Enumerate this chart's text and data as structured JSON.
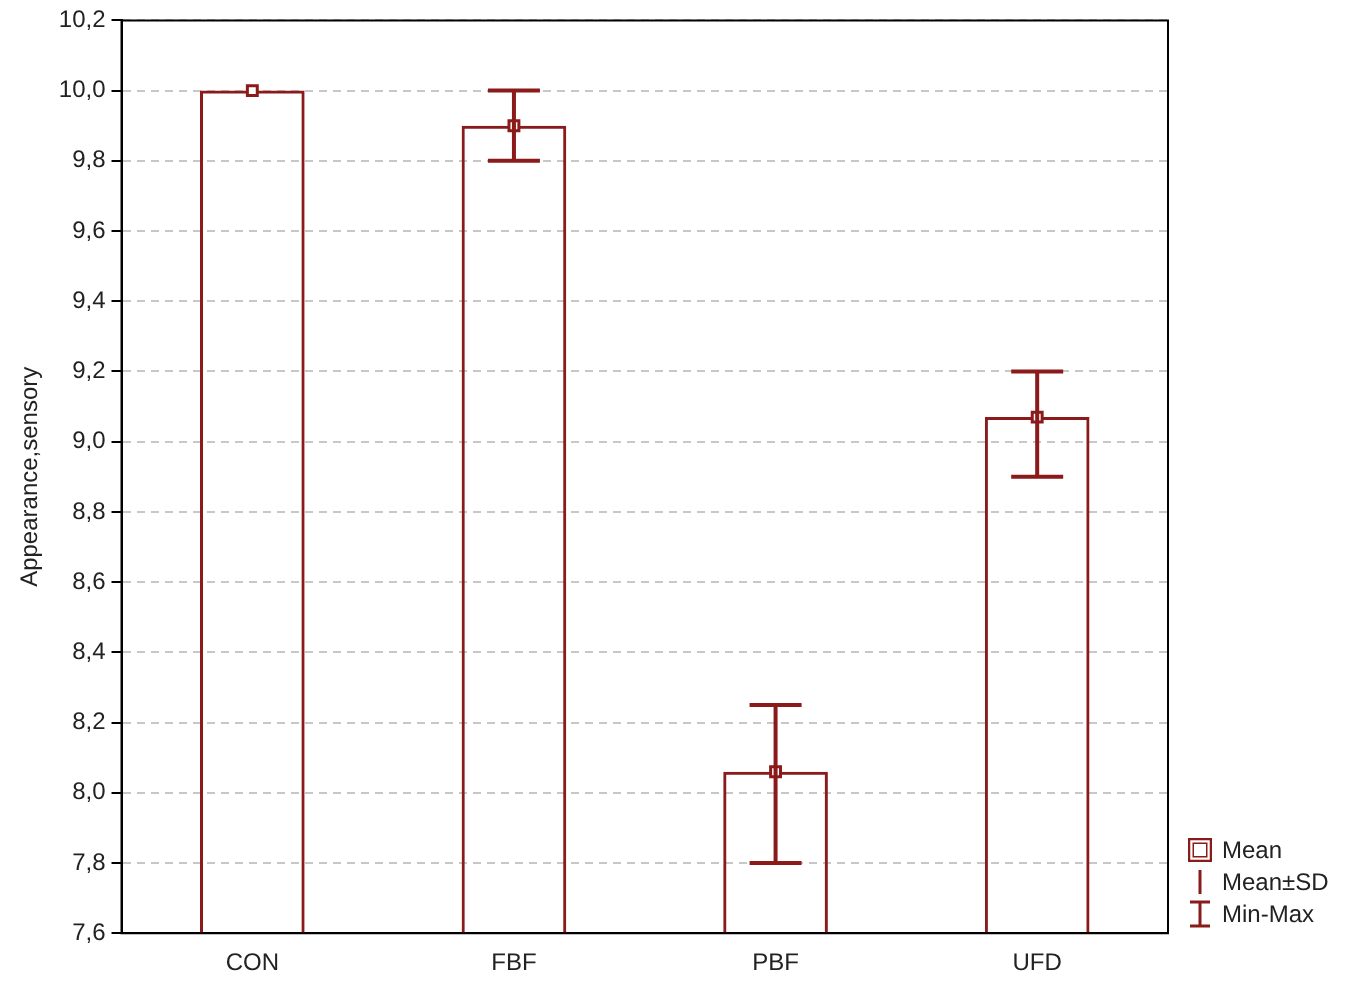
{
  "chart_data": {
    "type": "bar",
    "ylabel": "Appearance,sensory",
    "categories": [
      "CON",
      "FBF",
      "PBF",
      "UFD"
    ],
    "series": [
      {
        "color": "#8b1a1a",
        "values": [
          10.0,
          9.9,
          8.06,
          9.07
        ],
        "errors": [
          null,
          [
            9.8,
            10.0
          ],
          [
            7.8,
            8.25
          ],
          [
            8.9,
            9.2
          ]
        ]
      },
      {
        "type": "scatter",
        "name": "Mean",
        "color": "#8b1a1a",
        "x": [
          "CON",
          "FBF",
          "PBF",
          "UFD"
        ],
        "values": [
          10.0,
          9.9,
          8.06,
          9.07
        ]
      }
    ],
    "ylim": [
      7.6,
      10.2
    ],
    "yticks": [
      {
        "value": 7.6,
        "label": "7,6"
      },
      {
        "value": 7.8,
        "label": "7,8"
      },
      {
        "value": 8.0,
        "label": "8,0"
      },
      {
        "value": 8.2,
        "label": "8,2"
      },
      {
        "value": 8.4,
        "label": "8,4"
      },
      {
        "value": 8.6,
        "label": "8,6"
      },
      {
        "value": 8.8,
        "label": "8,8"
      },
      {
        "value": 9.0,
        "label": "9,0"
      },
      {
        "value": 9.2,
        "label": "9,2"
      },
      {
        "value": 9.4,
        "label": "9,4"
      },
      {
        "value": 9.6,
        "label": "9,6"
      },
      {
        "value": 9.8,
        "label": "9,8"
      },
      {
        "value": 10.0,
        "label": "10,0"
      },
      {
        "value": 10.2,
        "label": "10,2"
      }
    ],
    "grid": "y",
    "legend": "bottom right",
    "marker": "square",
    "annotations": [
      "Mean±SD",
      "Min-Max"
    ]
  }
}
